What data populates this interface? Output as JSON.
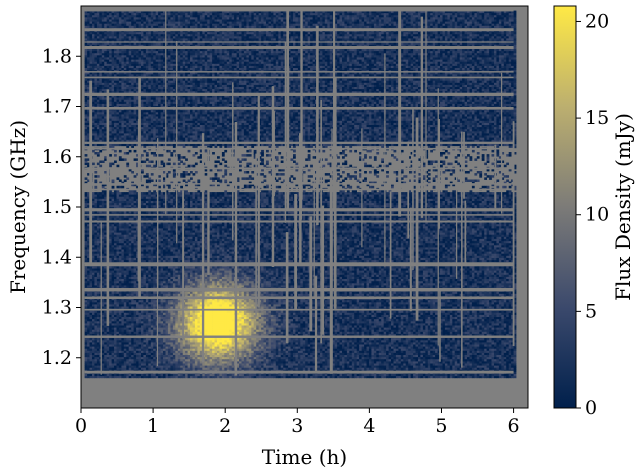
{
  "chart_data": {
    "type": "heatmap",
    "title": "",
    "xlabel": "Time (h)",
    "ylabel": "Frequency (GHz)",
    "xlim": [
      0,
      6.2
    ],
    "ylim": [
      1.1,
      1.9
    ],
    "xticks": [
      0,
      1,
      2,
      3,
      4,
      5,
      6
    ],
    "xtick_labels": [
      "0",
      "1",
      "2",
      "3",
      "4",
      "5",
      "6"
    ],
    "yticks": [
      1.2,
      1.3,
      1.4,
      1.5,
      1.6,
      1.7,
      1.8
    ],
    "ytick_labels": [
      "1.2",
      "1.3",
      "1.4",
      "1.5",
      "1.6",
      "1.7",
      "1.8"
    ],
    "data_extent": {
      "time": [
        0.05,
        6.0
      ],
      "frequency": [
        1.16,
        1.89
      ]
    },
    "masked_color": "#808080",
    "colorbar": {
      "label": "Flux Density (mJy)",
      "range": [
        0,
        20.8
      ],
      "ticks": [
        0,
        5,
        10,
        15,
        20
      ],
      "tick_labels": [
        "0",
        "5",
        "10",
        "15",
        "20"
      ],
      "colormap": "cividis",
      "colors": [
        "#00204c",
        "#3b496c",
        "#7c7b78",
        "#bcaf6f",
        "#ffe945"
      ]
    },
    "features": {
      "burst": {
        "time_center": 1.9,
        "freq_center": 1.27,
        "time_extent": [
          1.0,
          3.0
        ],
        "freq_extent": [
          1.16,
          1.45
        ],
        "peak": 20.8
      },
      "masked_band": {
        "freq_range": [
          1.53,
          1.62
        ]
      }
    }
  }
}
